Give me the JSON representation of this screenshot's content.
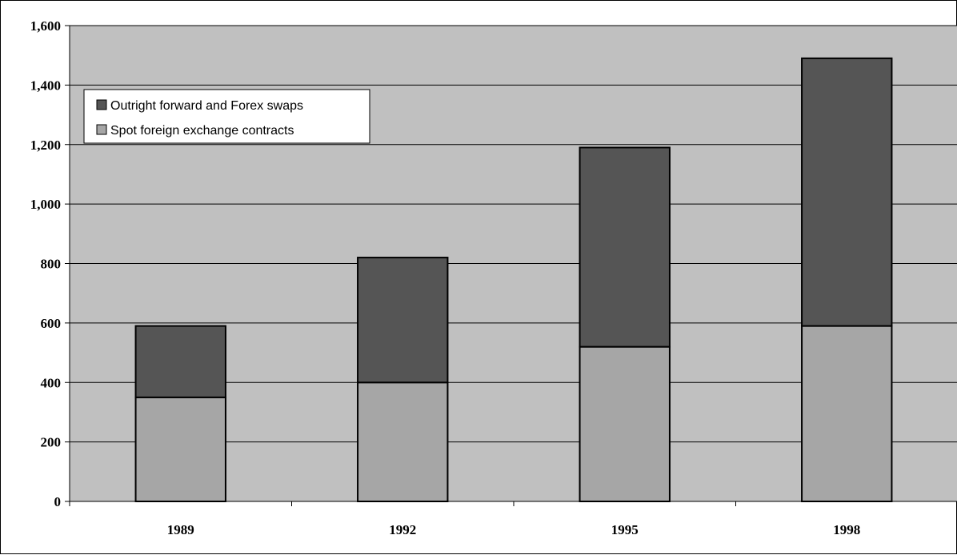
{
  "chart_data": {
    "type": "bar",
    "stacked": true,
    "categories": [
      "1989",
      "1992",
      "1995",
      "1998"
    ],
    "series": [
      {
        "name": "Spot foreign exchange contracts",
        "values": [
          350,
          400,
          520,
          590
        ],
        "color": "#a6a6a6"
      },
      {
        "name": "Outright forward and Forex swaps",
        "values": [
          240,
          420,
          670,
          900
        ],
        "color": "#555555"
      }
    ],
    "title": "",
    "xlabel": "",
    "ylabel": "",
    "ylim": [
      0,
      1600
    ],
    "yticks": [
      0,
      200,
      400,
      600,
      800,
      1000,
      1200,
      1400,
      1600
    ],
    "ytick_labels": [
      "0",
      "200",
      "400",
      "600",
      "800",
      "1,000",
      "1,200",
      "1,400",
      "1,600"
    ],
    "legend_order": [
      "Outright forward and Forex swaps",
      "Spot foreign exchange contracts"
    ],
    "grid": true,
    "legend_position": "top-left",
    "plot_background": "#c0c0c0"
  }
}
